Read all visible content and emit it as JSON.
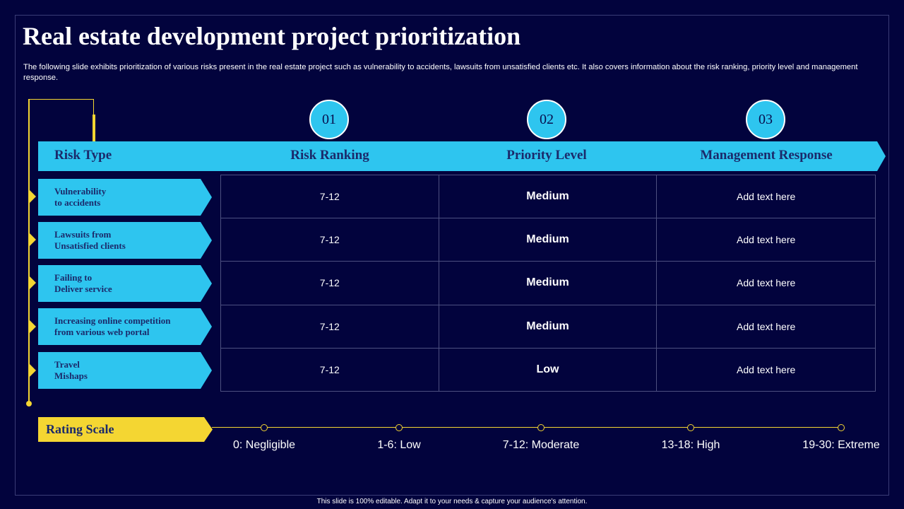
{
  "title": "Real estate development project prioritization",
  "description": "The following slide exhibits prioritization of various risks present in the real estate project such as vulnerability to  accidents, lawsuits from unsatisfied clients etc. It also covers information about the risk ranking, priority level and management response.",
  "steps": [
    "01",
    "02",
    "03"
  ],
  "headers": {
    "risk_type": "Risk Type",
    "risk_ranking": "Risk Ranking",
    "priority_level": "Priority Level",
    "management_response": "Management Response"
  },
  "rows": [
    {
      "risk_line1": "Vulnerability",
      "risk_line2": "to accidents",
      "ranking": "7-12",
      "priority": "Medium",
      "response": "Add text here"
    },
    {
      "risk_line1": "Lawsuits from",
      "risk_line2": "Unsatisfied clients",
      "ranking": "7-12",
      "priority": "Medium",
      "response": "Add text here"
    },
    {
      "risk_line1": "Failing to",
      "risk_line2": "Deliver service",
      "ranking": "7-12",
      "priority": "Medium",
      "response": "Add text here"
    },
    {
      "risk_line1": "Increasing online competition",
      "risk_line2": "from various web portal",
      "ranking": "7-12",
      "priority": "Medium",
      "response": "Add text here"
    },
    {
      "risk_line1": "Travel",
      "risk_line2": "Mishaps",
      "ranking": "7-12",
      "priority": "Low",
      "response": "Add text here"
    }
  ],
  "rating_scale": {
    "label": "Rating Scale",
    "levels": [
      "0: Negligible",
      "1-6: Low",
      "7-12: Moderate",
      "13-18: High",
      "19-30: Extreme"
    ]
  },
  "colors": {
    "background": "#02033d",
    "accent_cyan": "#2ec5ef",
    "accent_yellow": "#f4d632",
    "medium": "#2bb04a",
    "low": "#f6b21b"
  },
  "footer": "This slide is 100% editable.  Adapt it to your needs & capture your audience's attention."
}
